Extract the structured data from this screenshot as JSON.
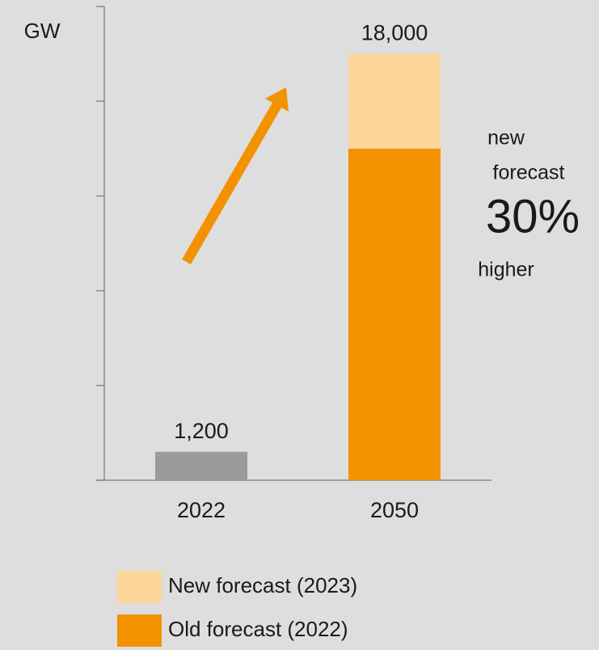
{
  "chart_data": {
    "type": "stacked_bar",
    "y_label": "GW",
    "categories": [
      "2022",
      "2050"
    ],
    "series": [
      {
        "name": "Old forecast (2022)",
        "color": "#f39200",
        "colors": [
          "#9a9a9a",
          "#f39200"
        ],
        "values": [
          1200,
          14000
        ]
      },
      {
        "name": "New forecast (2023)",
        "color": "#fdd699",
        "values": [
          null,
          4000
        ]
      }
    ],
    "totals": {
      "values": [
        1200,
        18000
      ],
      "labels": [
        "1,200",
        "18,000"
      ]
    },
    "annotations": [
      "new",
      "forecast",
      "30%",
      "higher"
    ],
    "ylim": [
      0,
      20000
    ],
    "yticks": [
      0,
      4000,
      8000,
      12000,
      16000,
      20000
    ]
  }
}
